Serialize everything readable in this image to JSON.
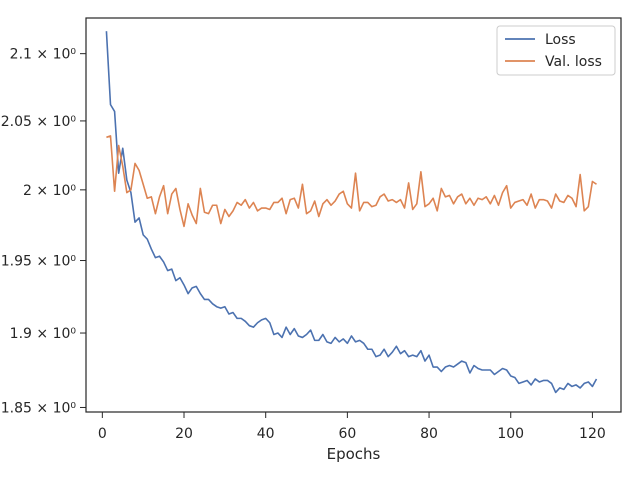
{
  "chart_data": {
    "type": "line",
    "title": "",
    "xlabel": "Epochs",
    "ylabel": "",
    "y_scale": "log",
    "xlim": [
      -4,
      127
    ],
    "ylim": [
      1.847,
      2.127
    ],
    "grid": false,
    "legend_position": "top-right",
    "x_ticks": [
      0,
      20,
      40,
      60,
      80,
      100,
      120
    ],
    "y_ticks": [
      {
        "value": 1.85,
        "label": "1.85 × 10⁰"
      },
      {
        "value": 1.9,
        "label": "1.9 × 10⁰"
      },
      {
        "value": 1.95,
        "label": "1.95 × 10⁰"
      },
      {
        "value": 2.0,
        "label": "2 × 10⁰"
      },
      {
        "value": 2.05,
        "label": "2.05 × 10⁰"
      },
      {
        "value": 2.1,
        "label": "2.1 × 10⁰"
      }
    ],
    "x_start": 1,
    "series": [
      {
        "name": "Loss",
        "color": "#4c72b0",
        "values": [
          2.117,
          2.062,
          2.057,
          2.012,
          2.03,
          2.007,
          1.998,
          1.977,
          1.98,
          1.968,
          1.965,
          1.958,
          1.952,
          1.953,
          1.949,
          1.943,
          1.944,
          1.936,
          1.938,
          1.933,
          1.927,
          1.931,
          1.932,
          1.927,
          1.923,
          1.923,
          1.92,
          1.918,
          1.917,
          1.918,
          1.913,
          1.914,
          1.91,
          1.91,
          1.908,
          1.905,
          1.904,
          1.907,
          1.909,
          1.91,
          1.907,
          1.899,
          1.9,
          1.897,
          1.904,
          1.899,
          1.903,
          1.898,
          1.897,
          1.899,
          1.902,
          1.895,
          1.895,
          1.899,
          1.894,
          1.893,
          1.897,
          1.894,
          1.896,
          1.893,
          1.898,
          1.894,
          1.895,
          1.893,
          1.889,
          1.889,
          1.884,
          1.885,
          1.889,
          1.884,
          1.887,
          1.891,
          1.886,
          1.888,
          1.884,
          1.885,
          1.884,
          1.888,
          1.881,
          1.885,
          1.877,
          1.877,
          1.874,
          1.877,
          1.878,
          1.877,
          1.879,
          1.881,
          1.88,
          1.873,
          1.878,
          1.876,
          1.875,
          1.875,
          1.875,
          1.872,
          1.874,
          1.876,
          1.875,
          1.871,
          1.87,
          1.866,
          1.867,
          1.868,
          1.865,
          1.869,
          1.867,
          1.868,
          1.868,
          1.866,
          1.86,
          1.863,
          1.862,
          1.866,
          1.864,
          1.865,
          1.863,
          1.866,
          1.867,
          1.864,
          1.869
        ]
      },
      {
        "name": "Val. loss",
        "color": "#dd8452",
        "values": [
          2.038,
          2.039,
          1.999,
          2.032,
          2.017,
          1.998,
          2.0,
          2.019,
          2.014,
          2.004,
          1.994,
          1.995,
          1.983,
          1.995,
          2.003,
          1.983,
          1.997,
          2.001,
          1.986,
          1.974,
          1.99,
          1.982,
          1.976,
          2.001,
          1.984,
          1.983,
          1.989,
          1.989,
          1.976,
          1.986,
          1.981,
          1.985,
          1.991,
          1.989,
          1.993,
          1.987,
          1.991,
          1.985,
          1.987,
          1.987,
          1.986,
          1.991,
          1.991,
          1.994,
          1.983,
          1.993,
          1.994,
          1.987,
          2.004,
          1.983,
          1.985,
          1.992,
          1.981,
          1.99,
          1.993,
          1.989,
          1.992,
          1.997,
          1.999,
          1.99,
          1.987,
          2.012,
          1.985,
          1.991,
          1.991,
          1.988,
          1.989,
          1.995,
          1.997,
          1.992,
          1.993,
          1.991,
          1.993,
          1.987,
          2.005,
          1.986,
          1.99,
          2.013,
          1.988,
          1.99,
          1.994,
          1.985,
          2.001,
          1.995,
          1.996,
          1.99,
          1.995,
          1.997,
          1.99,
          1.994,
          1.989,
          1.994,
          1.993,
          1.995,
          1.99,
          1.996,
          1.989,
          1.998,
          2.003,
          1.987,
          1.991,
          1.992,
          1.993,
          1.989,
          1.997,
          1.987,
          1.993,
          1.993,
          1.992,
          1.987,
          1.997,
          1.992,
          1.991,
          1.996,
          1.994,
          1.988,
          2.011,
          1.985,
          1.988,
          2.006,
          2.004
        ]
      }
    ]
  }
}
